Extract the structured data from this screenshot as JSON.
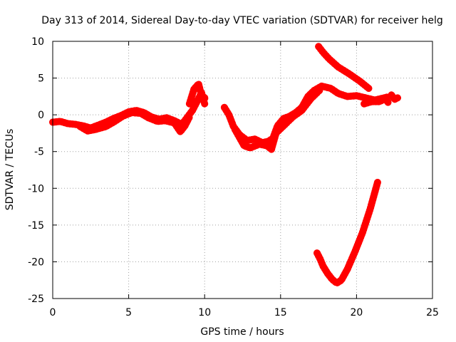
{
  "chart_data": {
    "type": "scatter",
    "title": "Day 313 of 2014, Sidereal Day-to-day VTEC variation (SDTVAR) for receiver helg",
    "xlabel": "GPS time / hours",
    "ylabel": "SDTVAR / TECUs",
    "xlim": [
      0,
      25
    ],
    "ylim": [
      -25,
      10
    ],
    "xticks": [
      0,
      5,
      10,
      15,
      20,
      25
    ],
    "yticks": [
      10,
      5,
      0,
      -5,
      -10,
      -15,
      -20,
      -25
    ],
    "xtick_labels": [
      "0",
      "5",
      "10",
      "15",
      "20",
      "25"
    ],
    "ytick_labels": [
      "10",
      "5",
      "0",
      "-5",
      "-10",
      "-15",
      "-20",
      "-25"
    ],
    "grid": true,
    "color": "#ff0000",
    "series": [
      {
        "name": "trace-main",
        "points": [
          [
            0,
            -1.0
          ],
          [
            0.5,
            -0.9
          ],
          [
            1.0,
            -1.2
          ],
          [
            1.5,
            -1.3
          ],
          [
            2.0,
            -1.5
          ],
          [
            2.5,
            -1.8
          ],
          [
            3.0,
            -1.4
          ],
          [
            3.5,
            -1.0
          ],
          [
            4.0,
            -0.5
          ],
          [
            4.5,
            -0.1
          ],
          [
            5.0,
            0.4
          ],
          [
            5.5,
            0.6
          ],
          [
            6.0,
            0.3
          ],
          [
            6.5,
            -0.3
          ],
          [
            7.0,
            -0.6
          ],
          [
            7.5,
            -0.4
          ],
          [
            8.0,
            -0.8
          ],
          [
            8.5,
            -1.3
          ],
          [
            8.8,
            -0.5
          ],
          [
            9.2,
            0.6
          ],
          [
            9.5,
            1.8
          ],
          [
            9.8,
            3.0
          ],
          [
            10.0,
            1.5
          ]
        ]
      },
      {
        "name": "trace-lower-band",
        "points": [
          [
            1.8,
            -1.6
          ],
          [
            2.3,
            -2.2
          ],
          [
            2.8,
            -2.0
          ],
          [
            3.5,
            -1.6
          ],
          [
            4.0,
            -1.0
          ],
          [
            4.6,
            -0.2
          ],
          [
            5.2,
            0.3
          ],
          [
            5.8,
            0.2
          ],
          [
            6.3,
            -0.4
          ],
          [
            6.9,
            -0.9
          ],
          [
            7.4,
            -0.8
          ],
          [
            8.0,
            -1.1
          ],
          [
            8.4,
            -2.3
          ],
          [
            8.7,
            -1.5
          ],
          [
            9.0,
            -0.3
          ]
        ]
      },
      {
        "name": "trace-spike",
        "points": [
          [
            9.0,
            1.5
          ],
          [
            9.3,
            3.5
          ],
          [
            9.6,
            4.2
          ],
          [
            9.8,
            2.6
          ],
          [
            10.1,
            2.2
          ]
        ]
      },
      {
        "name": "trace-dip",
        "points": [
          [
            11.3,
            1.0
          ],
          [
            11.6,
            0.0
          ],
          [
            11.9,
            -1.6
          ],
          [
            12.3,
            -2.7
          ],
          [
            12.8,
            -3.5
          ],
          [
            13.3,
            -3.3
          ],
          [
            13.8,
            -3.8
          ],
          [
            14.2,
            -3.6
          ],
          [
            14.5,
            -3.2
          ],
          [
            14.8,
            -1.5
          ],
          [
            15.2,
            -0.5
          ],
          [
            15.6,
            -0.2
          ],
          [
            16.0,
            0.3
          ],
          [
            16.4,
            1.0
          ],
          [
            16.8,
            2.5
          ],
          [
            17.2,
            3.3
          ],
          [
            17.7,
            3.9
          ],
          [
            18.3,
            3.6
          ],
          [
            18.8,
            2.9
          ],
          [
            19.4,
            2.5
          ],
          [
            20.0,
            2.6
          ],
          [
            20.6,
            2.3
          ],
          [
            21.2,
            2.0
          ],
          [
            21.6,
            2.2
          ],
          [
            22.0,
            2.4
          ]
        ]
      },
      {
        "name": "trace-dip-lower",
        "points": [
          [
            12.0,
            -2.0
          ],
          [
            12.6,
            -4.2
          ],
          [
            13.0,
            -4.5
          ],
          [
            13.6,
            -4.0
          ],
          [
            14.1,
            -4.2
          ],
          [
            14.4,
            -4.7
          ],
          [
            14.7,
            -2.5
          ],
          [
            15.2,
            -1.5
          ],
          [
            15.8,
            -0.3
          ],
          [
            16.4,
            0.6
          ],
          [
            17.0,
            2.2
          ],
          [
            17.6,
            3.4
          ]
        ]
      },
      {
        "name": "trace-tail",
        "points": [
          [
            20.5,
            1.5
          ],
          [
            21.0,
            1.8
          ],
          [
            21.5,
            1.8
          ],
          [
            21.9,
            2.2
          ],
          [
            22.1,
            1.6
          ]
        ]
      },
      {
        "name": "trace-end",
        "points": [
          [
            22.3,
            2.7
          ],
          [
            22.5,
            2.1
          ],
          [
            22.7,
            2.3
          ]
        ]
      },
      {
        "name": "trace-descending",
        "points": [
          [
            17.5,
            9.3
          ],
          [
            17.8,
            8.5
          ],
          [
            18.2,
            7.6
          ],
          [
            18.8,
            6.5
          ],
          [
            19.5,
            5.6
          ],
          [
            20.2,
            4.6
          ],
          [
            20.8,
            3.6
          ]
        ]
      },
      {
        "name": "trace-v",
        "points": [
          [
            17.4,
            -18.8
          ],
          [
            17.6,
            -19.6
          ],
          [
            17.8,
            -20.6
          ],
          [
            18.1,
            -21.6
          ],
          [
            18.4,
            -22.4
          ],
          [
            18.7,
            -22.9
          ],
          [
            19.0,
            -22.5
          ],
          [
            19.4,
            -21.0
          ],
          [
            19.9,
            -18.6
          ],
          [
            20.4,
            -16.0
          ],
          [
            20.9,
            -12.8
          ],
          [
            21.4,
            -9.1
          ]
        ]
      }
    ]
  }
}
